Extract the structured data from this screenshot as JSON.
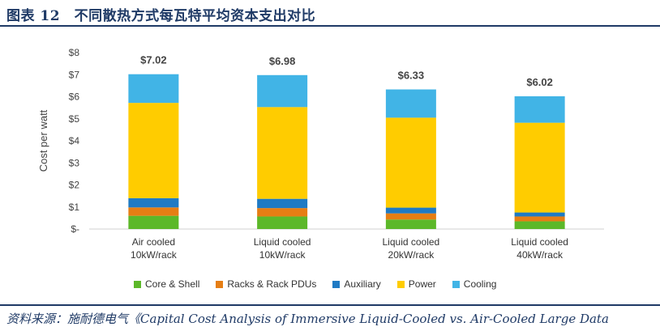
{
  "header": {
    "title": "图表 12　不同散热方式每瓦特平均资本支出对比"
  },
  "source": {
    "text": "资料来源：施耐德电气《Capital Cost Analysis of Immersive Liquid-Cooled vs. Air-Cooled Large Data"
  },
  "chart_data": {
    "type": "bar",
    "stacked": true,
    "ylabel": "Cost per watt",
    "ylim": [
      0,
      8
    ],
    "yticks": [
      "$-",
      "$1",
      "$2",
      "$3",
      "$4",
      "$5",
      "$6",
      "$7",
      "$8"
    ],
    "categories": [
      [
        "Air cooled",
        "10kW/rack"
      ],
      [
        "Liquid cooled",
        "10kW/rack"
      ],
      [
        "Liquid cooled",
        "20kW/rack"
      ],
      [
        "Liquid cooled",
        "40kW/rack"
      ]
    ],
    "totals": [
      "$7.02",
      "$6.98",
      "$6.33",
      "$6.02"
    ],
    "series": [
      {
        "name": "Core & Shell",
        "color": "#5cb829",
        "values": [
          0.6,
          0.57,
          0.43,
          0.35
        ]
      },
      {
        "name": "Racks & Rack PDUs",
        "color": "#e67e14",
        "values": [
          0.38,
          0.38,
          0.28,
          0.22
        ]
      },
      {
        "name": "Auxiliary",
        "color": "#1f7ac4",
        "values": [
          0.42,
          0.42,
          0.26,
          0.18
        ]
      },
      {
        "name": "Power",
        "color": "#ffcc00",
        "values": [
          4.32,
          4.16,
          4.08,
          4.07
        ]
      },
      {
        "name": "Cooling",
        "color": "#41b4e6",
        "values": [
          1.3,
          1.45,
          1.28,
          1.2
        ]
      }
    ]
  }
}
